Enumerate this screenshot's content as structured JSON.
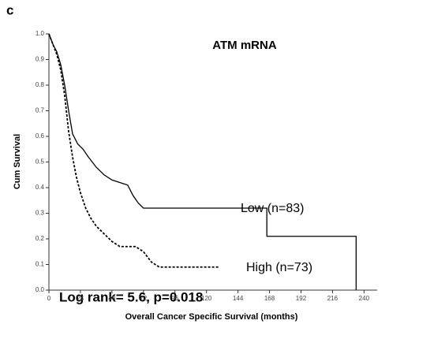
{
  "chart_data": {
    "type": "line",
    "panel_label": "c",
    "title": "ATM mRNA",
    "xlabel": "Overall Cancer Specific Survival (months)",
    "ylabel": "Cum Survival",
    "annotation": "Log rank= 5.6, p=0.018",
    "xlim": [
      0,
      250
    ],
    "ylim": [
      0,
      1
    ],
    "xticks": [
      0,
      24,
      48,
      72,
      96,
      120,
      144,
      168,
      192,
      216,
      240
    ],
    "yticks": [
      {
        "value": 0,
        "label": "0.0"
      },
      0.1,
      0.2,
      0.3,
      0.4,
      0.5,
      0.6,
      0.7,
      0.8,
      0.9,
      {
        "value": 1,
        "label": "1.0"
      }
    ],
    "series": [
      {
        "name": "Low (n=83)",
        "color": "#000000",
        "linestyle": "solid",
        "x": [
          0,
          3,
          6,
          9,
          12,
          15,
          18,
          22,
          26,
          30,
          36,
          42,
          48,
          54,
          60,
          64,
          68,
          72,
          166,
          166,
          234,
          234
        ],
        "values": [
          1.0,
          0.96,
          0.93,
          0.88,
          0.8,
          0.7,
          0.61,
          0.57,
          0.55,
          0.52,
          0.48,
          0.45,
          0.43,
          0.42,
          0.41,
          0.37,
          0.34,
          0.32,
          0.32,
          0.21,
          0.21,
          0.0
        ]
      },
      {
        "name": "High (n=73)",
        "color": "#000000",
        "linestyle": "dashed",
        "x": [
          0,
          3,
          6,
          9,
          12,
          15,
          18,
          21,
          24,
          28,
          32,
          36,
          42,
          48,
          54,
          60,
          66,
          72,
          78,
          84,
          130
        ],
        "values": [
          1.0,
          0.96,
          0.92,
          0.86,
          0.76,
          0.62,
          0.52,
          0.44,
          0.38,
          0.32,
          0.28,
          0.25,
          0.22,
          0.19,
          0.17,
          0.17,
          0.17,
          0.15,
          0.11,
          0.09,
          0.09
        ]
      }
    ]
  }
}
